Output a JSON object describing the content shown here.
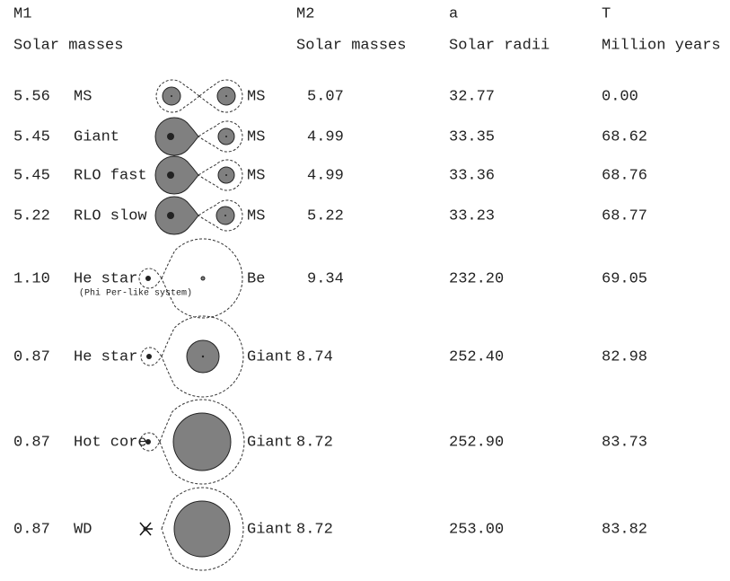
{
  "header": {
    "columns": [
      {
        "name": "M1",
        "unit": "Solar masses"
      },
      {
        "name": "M2",
        "unit": "Solar masses"
      },
      {
        "name": "a",
        "unit": "Solar radii"
      },
      {
        "name": "T",
        "unit": "Million years"
      }
    ]
  },
  "rows": [
    {
      "m1": "5.56",
      "state1": "MS",
      "state2": "MS",
      "m2": "5.07",
      "a": "32.77",
      "t": "0.00"
    },
    {
      "m1": "5.45",
      "state1": "Giant",
      "state2": "MS",
      "m2": "4.99",
      "a": "33.35",
      "t": "68.62"
    },
    {
      "m1": "5.45",
      "state1": "RLO fast",
      "state2": "MS",
      "m2": "4.99",
      "a": "33.36",
      "t": "68.76"
    },
    {
      "m1": "5.22",
      "state1": "RLO slow",
      "state2": "MS",
      "m2": "5.22",
      "a": "33.23",
      "t": "68.77"
    },
    {
      "m1": "1.10",
      "state1": "He star",
      "state2": "Be",
      "m2": "9.34",
      "a": "232.20",
      "t": "69.05",
      "note": "(Phi Per-like system)"
    },
    {
      "m1": "0.87",
      "state1": "He star",
      "state2": "Giant",
      "m2": "8.74",
      "a": "252.40",
      "t": "82.98"
    },
    {
      "m1": "0.87",
      "state1": "Hot core",
      "state2": "Giant",
      "m2": "8.72",
      "a": "252.90",
      "t": "83.73"
    },
    {
      "m1": "0.87",
      "state1": "WD",
      "state2": "Giant",
      "m2": "8.72",
      "a": "253.00",
      "t": "83.82"
    }
  ]
}
